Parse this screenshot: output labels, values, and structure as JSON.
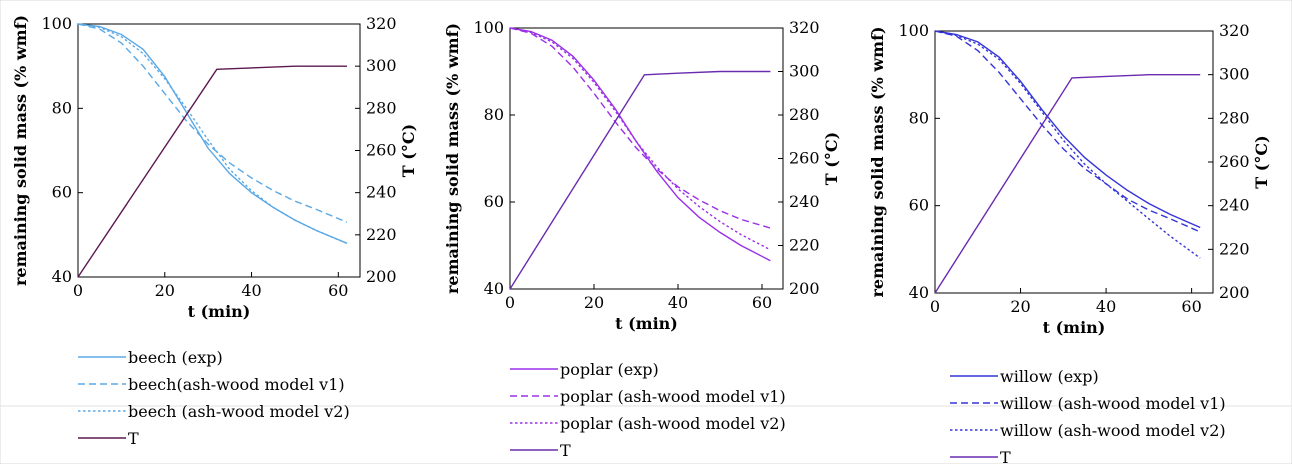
{
  "chart_data": [
    {
      "type": "line",
      "xlabel": "t (min)",
      "ylabel": "remaining solid mass (% wmf)",
      "y2label": "T (°C)",
      "xlim": [
        0,
        65
      ],
      "ylim": [
        40,
        100
      ],
      "y2lim": [
        200,
        320
      ],
      "xticks": [
        "0",
        "20",
        "40",
        "60"
      ],
      "yticks": [
        "40",
        "60",
        "80",
        "100"
      ],
      "y2ticks": [
        "200",
        "220",
        "240",
        "260",
        "280",
        "300",
        "320"
      ],
      "series": [
        {
          "name": "beech (exp)",
          "axis": "left",
          "style": "solid",
          "color": "#5aa9e6",
          "x": [
            0,
            5,
            10,
            15,
            20,
            25,
            30,
            35,
            40,
            45,
            50,
            55,
            62
          ],
          "y": [
            100,
            99.4,
            97.5,
            94,
            87.5,
            79,
            70.5,
            64.5,
            60,
            56.5,
            53.5,
            51,
            48
          ]
        },
        {
          "name": "beech(ash-wood model v1)",
          "axis": "left",
          "style": "dash",
          "color": "#5aa9e6",
          "x": [
            0,
            5,
            10,
            15,
            20,
            25,
            30,
            35,
            40,
            45,
            50,
            55,
            62
          ],
          "y": [
            100,
            98.8,
            95.5,
            90,
            83.5,
            77,
            71.5,
            67,
            63.5,
            60.5,
            58,
            56,
            53
          ]
        },
        {
          "name": "beech (ash-wood model v2)",
          "axis": "left",
          "style": "dot",
          "color": "#5aa9e6",
          "x": [
            0,
            5,
            10,
            15,
            20,
            25,
            30,
            35,
            40,
            45,
            50,
            55,
            62
          ],
          "y": [
            100,
            99.2,
            97,
            93,
            87,
            80,
            72.5,
            65.5,
            60.5,
            56.5,
            53.5,
            51,
            48
          ]
        },
        {
          "name": "T",
          "axis": "right",
          "style": "solid",
          "color": "#5c1a4f",
          "x": [
            0,
            32,
            40,
            50,
            62
          ],
          "y": [
            200,
            298.5,
            299.2,
            300,
            300
          ]
        }
      ]
    },
    {
      "type": "line",
      "xlabel": "t (min)",
      "ylabel": "remaining solid mass (% wmf)",
      "y2label": "T (°C)",
      "xlim": [
        0,
        65
      ],
      "ylim": [
        40,
        100
      ],
      "y2lim": [
        200,
        320
      ],
      "xticks": [
        "0",
        "20",
        "40",
        "60"
      ],
      "yticks": [
        "40",
        "60",
        "80",
        "100"
      ],
      "y2ticks": [
        "200",
        "220",
        "240",
        "260",
        "280",
        "300",
        "320"
      ],
      "series": [
        {
          "name": "poplar (exp)",
          "axis": "left",
          "style": "solid",
          "color": "#9b30e8",
          "x": [
            0,
            5,
            10,
            15,
            20,
            25,
            30,
            35,
            40,
            45,
            50,
            55,
            62
          ],
          "y": [
            100,
            99.2,
            97.2,
            93.5,
            88,
            81.5,
            74,
            67,
            61,
            56.5,
            53,
            50,
            46.5
          ]
        },
        {
          "name": "poplar (ash-wood model v1)",
          "axis": "left",
          "style": "dash",
          "color": "#9b30e8",
          "x": [
            0,
            5,
            10,
            15,
            20,
            25,
            30,
            35,
            40,
            45,
            50,
            55,
            62
          ],
          "y": [
            100,
            98.8,
            95.8,
            91,
            85,
            78.5,
            72.5,
            67.5,
            63.5,
            60.5,
            58,
            56,
            54
          ]
        },
        {
          "name": "poplar (ash-wood model v2)",
          "axis": "left",
          "style": "dot",
          "color": "#9b30e8",
          "x": [
            0,
            5,
            10,
            15,
            20,
            25,
            30,
            35,
            40,
            45,
            50,
            55,
            62
          ],
          "y": [
            100,
            99,
            96.8,
            93,
            87.5,
            81,
            74,
            68,
            63,
            59,
            55.5,
            52.5,
            49
          ]
        },
        {
          "name": "T",
          "axis": "right",
          "style": "solid",
          "color": "#6a2bb0",
          "x": [
            0,
            32,
            40,
            50,
            62
          ],
          "y": [
            200,
            298.5,
            299.2,
            300,
            300
          ]
        }
      ]
    },
    {
      "type": "line",
      "xlabel": "t (min)",
      "ylabel": "remaining solid mass (% wmf)",
      "y2label": "T (°C)",
      "xlim": [
        0,
        65
      ],
      "ylim": [
        40,
        100
      ],
      "y2lim": [
        200,
        320
      ],
      "xticks": [
        "0",
        "20",
        "40",
        "60"
      ],
      "yticks": [
        "40",
        "60",
        "80",
        "100"
      ],
      "y2ticks": [
        "200",
        "220",
        "240",
        "260",
        "280",
        "300",
        "320"
      ],
      "series": [
        {
          "name": "willow (exp)",
          "axis": "left",
          "style": "solid",
          "color": "#3535d8",
          "x": [
            0,
            5,
            10,
            15,
            20,
            25,
            30,
            35,
            40,
            45,
            50,
            55,
            62
          ],
          "y": [
            100,
            99.2,
            97.5,
            94,
            88.5,
            82,
            76,
            71,
            67,
            63.5,
            60.5,
            58,
            55
          ]
        },
        {
          "name": "willow (ash-wood model v1)",
          "axis": "left",
          "style": "dash",
          "color": "#3535d8",
          "x": [
            0,
            5,
            10,
            15,
            20,
            25,
            30,
            35,
            40,
            45,
            50,
            55,
            62
          ],
          "y": [
            100,
            98.8,
            95.5,
            90.5,
            84.5,
            78.5,
            73,
            68.5,
            65,
            61.5,
            59,
            57,
            54
          ]
        },
        {
          "name": "willow (ash-wood model v2)",
          "axis": "left",
          "style": "dot",
          "color": "#3535d8",
          "x": [
            0,
            5,
            10,
            15,
            20,
            25,
            30,
            35,
            40,
            45,
            50,
            55,
            62
          ],
          "y": [
            100,
            99,
            97,
            93.5,
            88,
            81.5,
            75,
            69.5,
            65,
            61,
            57,
            53,
            48
          ]
        },
        {
          "name": "T",
          "axis": "right",
          "style": "solid",
          "color": "#6a2bb0",
          "x": [
            0,
            32,
            40,
            50,
            62
          ],
          "y": [
            200,
            298.5,
            299.2,
            300,
            300
          ]
        }
      ]
    }
  ]
}
